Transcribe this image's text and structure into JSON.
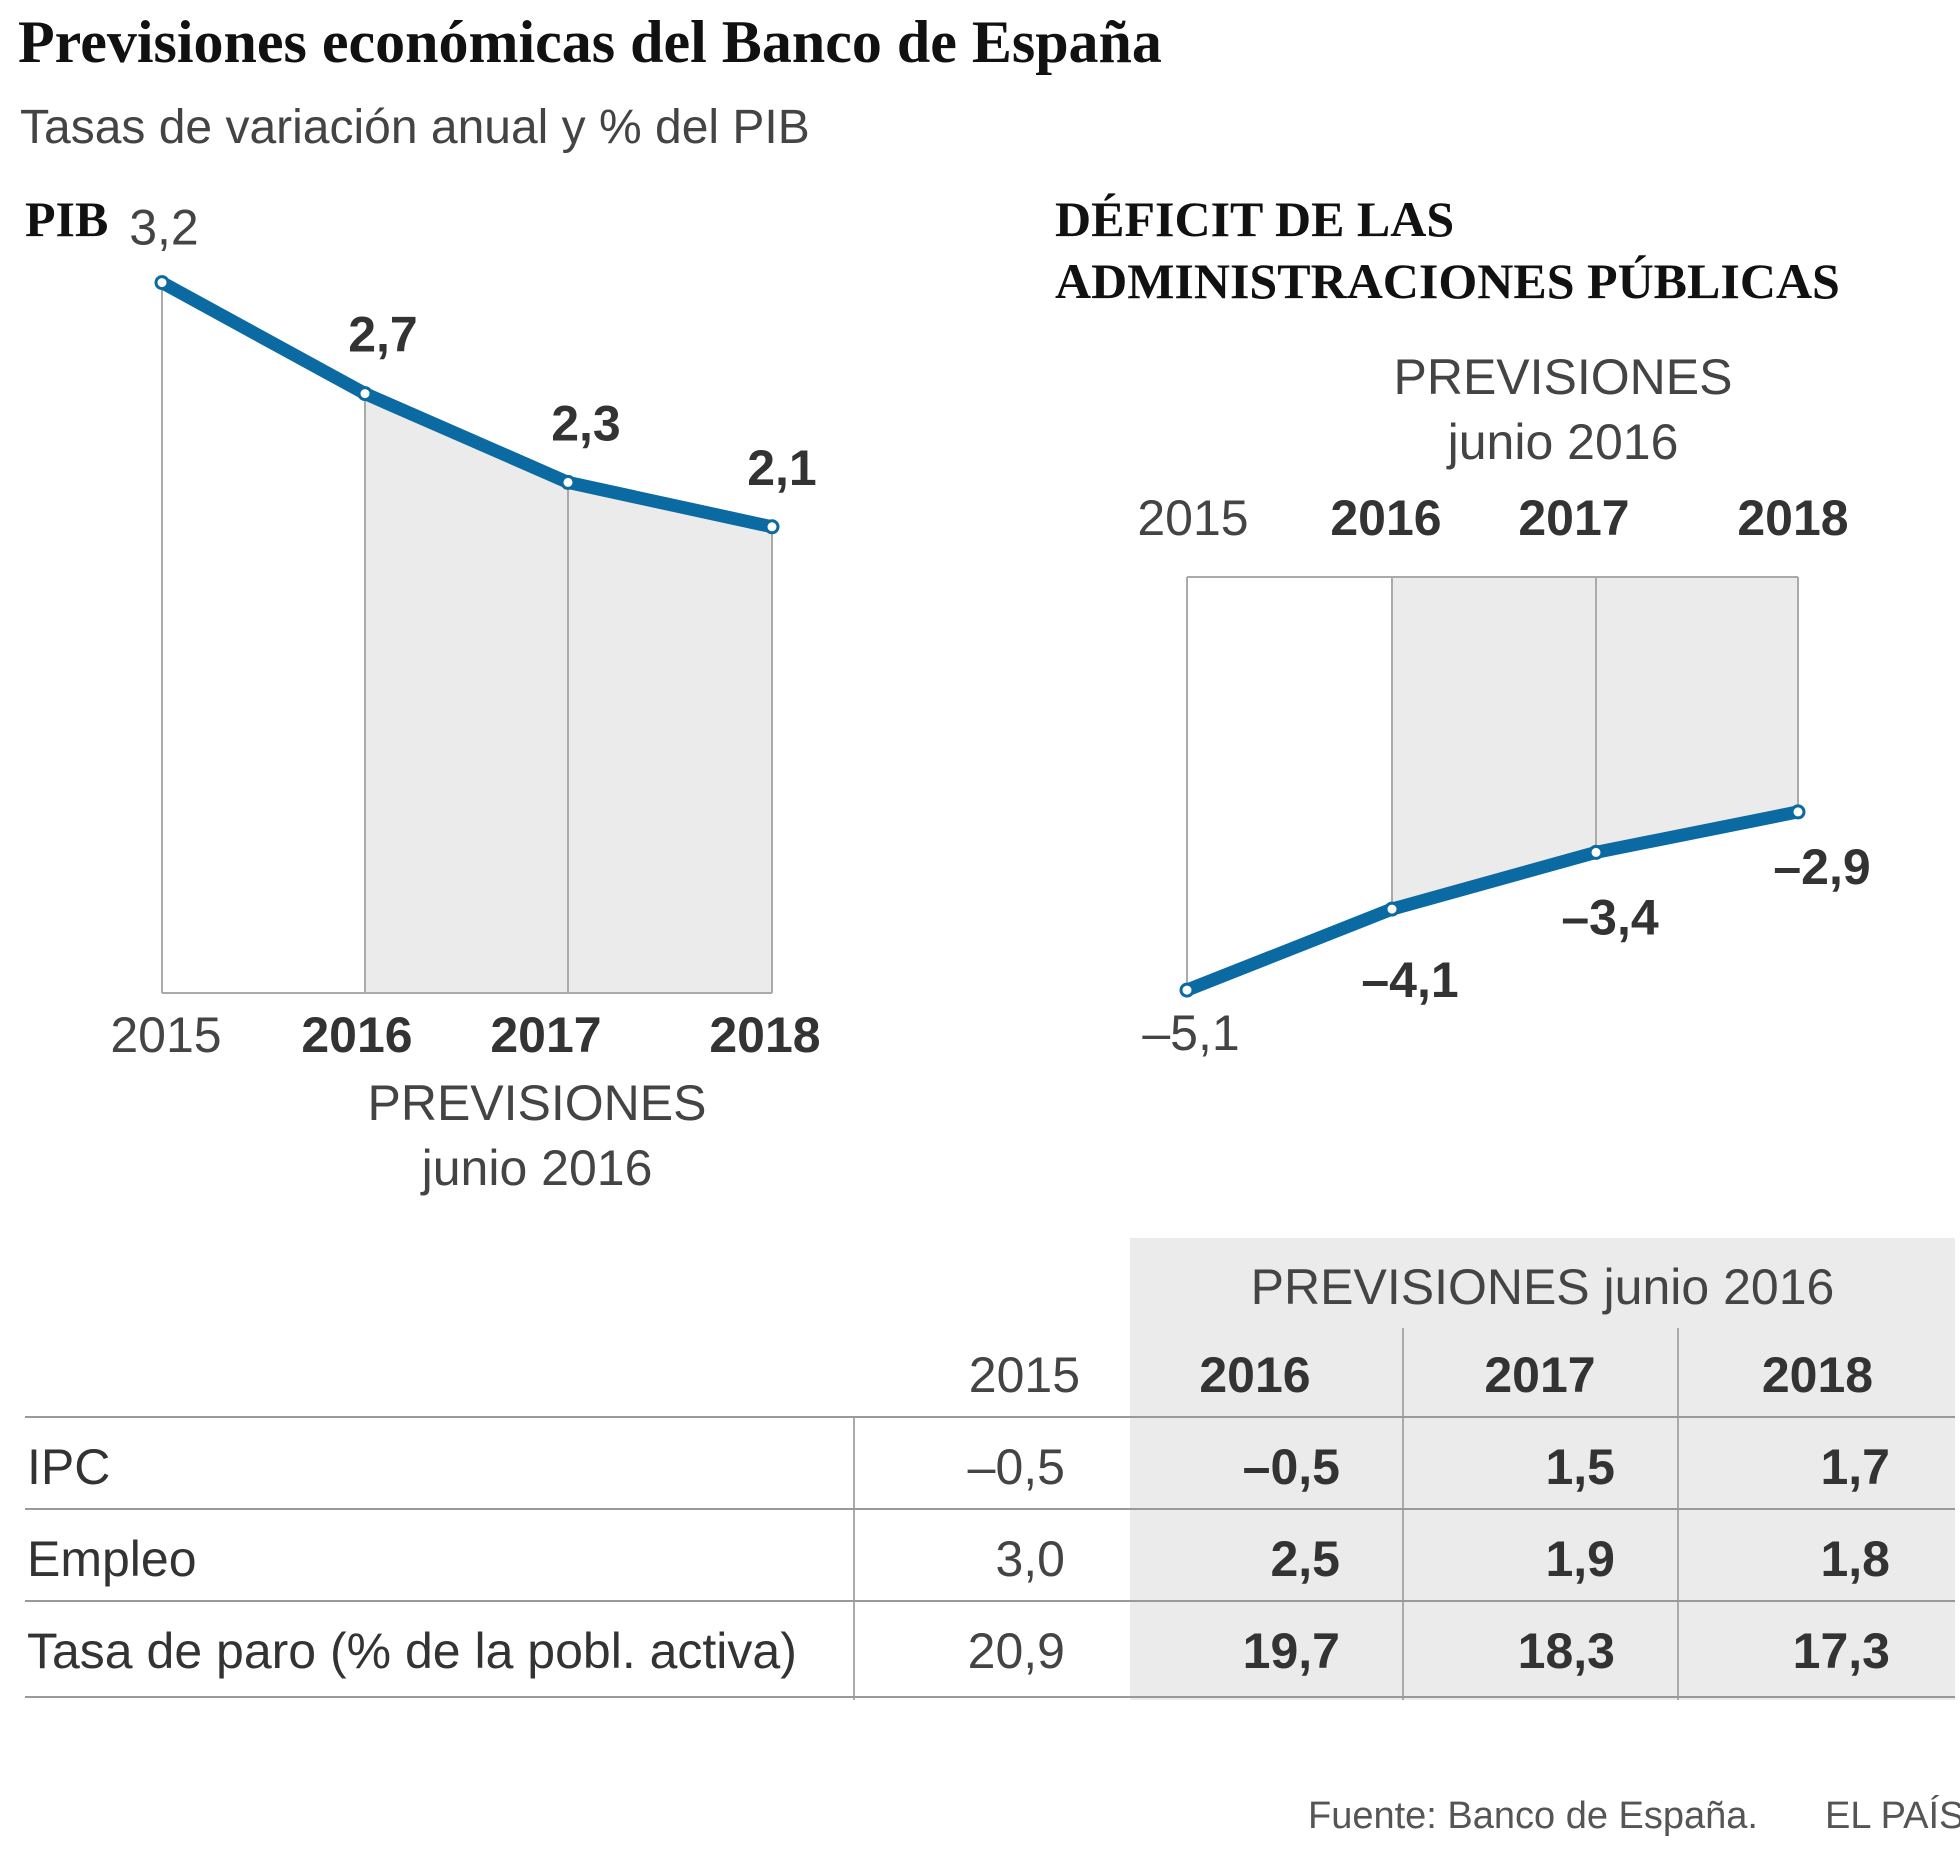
{
  "header": {
    "title": "Previsiones económicas del Banco de España",
    "subtitle": "Tasas de variación anual y % del PIB"
  },
  "colors": {
    "line": "#0a6aa1",
    "shade": "#ebebeb"
  },
  "chart_data": [
    {
      "type": "line",
      "title": "PIB",
      "categories": [
        "2015",
        "2016",
        "2017",
        "2018"
      ],
      "values": [
        3.2,
        2.7,
        2.3,
        2.1
      ],
      "value_labels": [
        "3,2",
        "2,7",
        "2,3",
        "2,1"
      ],
      "forecast_note": [
        "PREVISIONES",
        "junio 2016"
      ]
    },
    {
      "type": "line",
      "title": [
        "DÉFICIT DE LAS",
        "ADMINISTRACIONES PÚBLICAS"
      ],
      "categories": [
        "2015",
        "2016",
        "2017",
        "2018"
      ],
      "values": [
        -5.1,
        -4.1,
        -3.4,
        -2.9
      ],
      "value_labels": [
        "–5,1",
        "–4,1",
        "–3,4",
        "–2,9"
      ],
      "forecast_note": [
        "PREVISIONES",
        "junio 2016"
      ]
    }
  ],
  "table": {
    "forecast_header": "PREVISIONES junio 2016",
    "columns": [
      "2015",
      "2016",
      "2017",
      "2018"
    ],
    "rows": [
      {
        "label": "IPC",
        "values": [
          "–0,5",
          "–0,5",
          "1,5",
          "1,7"
        ]
      },
      {
        "label": "Empleo",
        "values": [
          "3,0",
          "2,5",
          "1,9",
          "1,8"
        ]
      },
      {
        "label": "Tasa de paro (% de la pobl. activa)",
        "values": [
          "20,9",
          "19,7",
          "18,3",
          "17,3"
        ]
      }
    ]
  },
  "footer": {
    "source": "Fuente: Banco de España.",
    "brand": "EL PAÍS"
  }
}
